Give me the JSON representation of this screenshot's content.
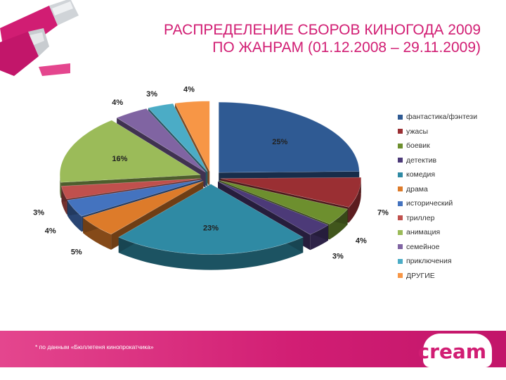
{
  "title_lines": [
    "РАСПРЕДЕЛЕНИЕ СБОРОВ КИНОГОДА 2009",
    "ПО ЖАНРАМ (01.12.2008 – 29.11.2009)"
  ],
  "footnote": "* по данным «Бюллетеня кинопрокатчика»",
  "logo_text": "cream",
  "brand_color": "#d11d73",
  "chart_data": {
    "type": "pie",
    "title": "РАСПРЕДЕЛЕНИЕ СБОРОВ КИНОГОДА 2009 ПО ЖАНРАМ (01.12.2008 – 29.11.2009)",
    "legend_position": "right",
    "slices": [
      {
        "name": "фантастика/фэнтези",
        "value": 25,
        "label": "25%",
        "color": "#2f5a93"
      },
      {
        "name": "ужасы",
        "value": 7,
        "label": "7%",
        "color": "#9a2f33"
      },
      {
        "name": "боевик",
        "value": 4,
        "label": "4%",
        "color": "#6d8f2e"
      },
      {
        "name": "детектив",
        "value": 3,
        "label": "3%",
        "color": "#4c3a78"
      },
      {
        "name": "комедия",
        "value": 23,
        "label": "23%",
        "color": "#2f8aa4"
      },
      {
        "name": "драма",
        "value": 5,
        "label": "5%",
        "color": "#dd7b2a"
      },
      {
        "name": "исторический",
        "value": 4,
        "label": "4%",
        "color": "#4473bf"
      },
      {
        "name": "триллер",
        "value": 3,
        "label": "3%",
        "color": "#c0504d"
      },
      {
        "name": "анимация",
        "value": 16,
        "label": "16%",
        "color": "#9bbb59"
      },
      {
        "name": "семейное",
        "value": 4,
        "label": "4%",
        "color": "#8064a2"
      },
      {
        "name": "приключения",
        "value": 3,
        "label": "3%",
        "color": "#4bacc6"
      },
      {
        "name": "ДРУГИЕ",
        "value": 4,
        "label": "4%",
        "color": "#f79646"
      }
    ]
  }
}
